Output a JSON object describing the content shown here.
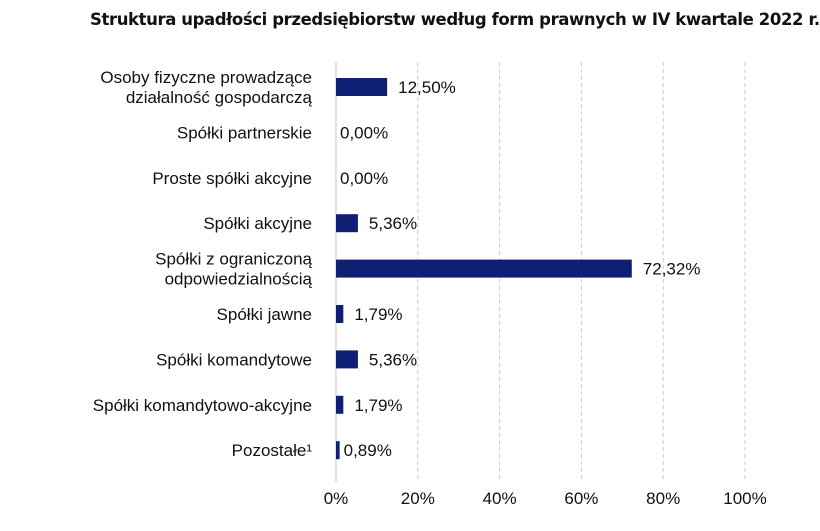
{
  "chart_data": {
    "type": "bar",
    "orientation": "horizontal",
    "title": "Struktura upadłości przedsiębiorstw według form prawnych w IV kwartale 2022 r.",
    "categories": [
      [
        "Osoby fizyczne prowadzące",
        "działalność gospodarczą"
      ],
      [
        "Spółki partnerskie"
      ],
      [
        "Proste spółki akcyjne"
      ],
      [
        "Spółki akcyjne"
      ],
      [
        "Spółki z ograniczoną",
        "odpowiedzialnością"
      ],
      [
        "Spółki jawne"
      ],
      [
        "Spółki komandytowe"
      ],
      [
        "Spółki komandytowo-akcyjne"
      ],
      [
        "Pozostałe¹"
      ]
    ],
    "values": [
      12.5,
      0.0,
      0.0,
      5.36,
      72.32,
      1.79,
      5.36,
      1.79,
      0.89
    ],
    "value_labels": [
      "12,50%",
      "0,00%",
      "0,00%",
      "5,36%",
      "72,32%",
      "1,79%",
      "5,36%",
      "1,79%",
      "0,89%"
    ],
    "xlim": [
      0,
      100
    ],
    "xticks": [
      0,
      20,
      40,
      60,
      80,
      100
    ],
    "xtick_labels": [
      "0%",
      "20%",
      "40%",
      "60%",
      "80%",
      "100%"
    ],
    "grid": "vertical dashed",
    "bar_color": "#0f1f74",
    "grid_color": "#c8c8c8"
  }
}
